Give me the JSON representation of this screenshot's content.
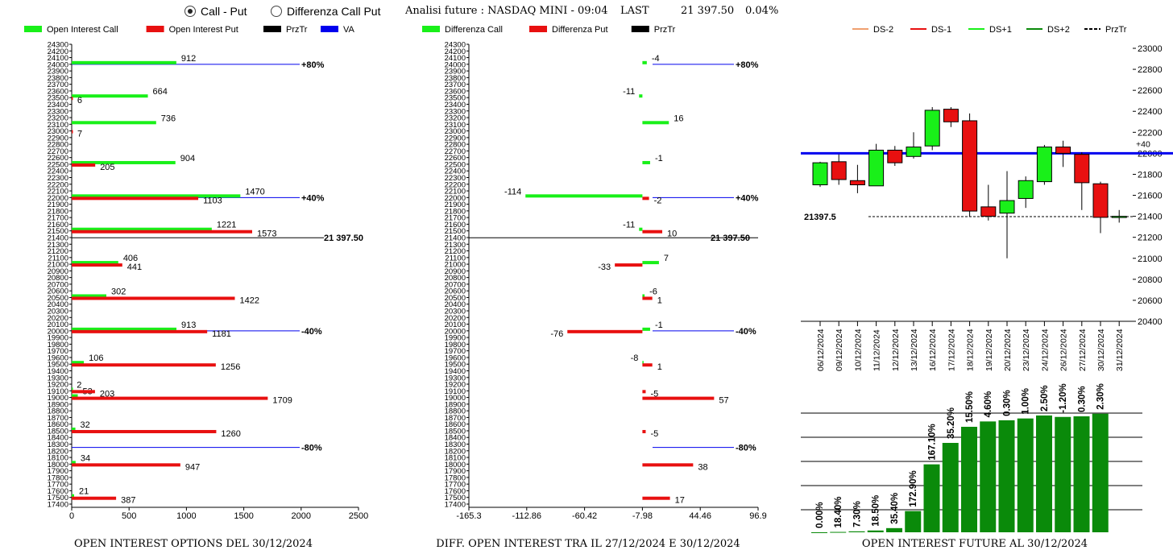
{
  "header": {
    "radio_call_put": "Call - Put",
    "radio_diff": "Differenza Call Put",
    "title": "Analisi future : NASDAQ MINI - 09:04",
    "last_label": "LAST",
    "last_value": "21 397.50",
    "change": "0.04%"
  },
  "colors": {
    "green": "#19f019",
    "red": "#e81010",
    "black": "#000000",
    "blue": "#0000ee",
    "darkgreen": "#0a8a0a"
  },
  "chart_data": [
    {
      "type": "bar",
      "orientation": "horizontal",
      "title": "OPEN INTEREST OPTIONS DEL 30/12/2024",
      "legend": [
        "Open Interest Call",
        "Open Interest Put",
        "PrzTr",
        "VA"
      ],
      "legend_placement": "top",
      "xlim": [
        0,
        2500
      ],
      "x_ticks": [
        "0",
        "500",
        "1000",
        "1500",
        "2000",
        "2500"
      ],
      "ylim": [
        17400,
        24300
      ],
      "y_tick_step": 100,
      "series": [
        {
          "name": "Open Interest Call",
          "color": "green",
          "points": [
            {
              "strike": 24000,
              "value": 912,
              "label": "912"
            },
            {
              "strike": 23500,
              "value": 664,
              "label": "664"
            },
            {
              "strike": 23100,
              "value": 736,
              "label": "736"
            },
            {
              "strike": 22500,
              "value": 904,
              "label": "904"
            },
            {
              "strike": 22000,
              "value": 1470,
              "label": "1470"
            },
            {
              "strike": 21500,
              "value": 1221,
              "label": "1221"
            },
            {
              "strike": 21000,
              "value": 406,
              "label": "406"
            },
            {
              "strike": 20500,
              "value": 302,
              "label": "302"
            },
            {
              "strike": 20000,
              "value": 913,
              "label": "913"
            },
            {
              "strike": 19500,
              "value": 106,
              "label": "106"
            },
            {
              "strike": 19100,
              "value": 2,
              "label": "2"
            },
            {
              "strike": 19000,
              "value": 53,
              "label": "53"
            },
            {
              "strike": 18500,
              "value": 32,
              "label": "32"
            },
            {
              "strike": 18000,
              "value": 34,
              "label": "34"
            },
            {
              "strike": 17500,
              "value": 21,
              "label": "21"
            }
          ]
        },
        {
          "name": "Open Interest Put",
          "color": "red",
          "points": [
            {
              "strike": 23500,
              "value": 6,
              "label": "6"
            },
            {
              "strike": 23000,
              "value": 7,
              "label": "7"
            },
            {
              "strike": 22500,
              "value": 205,
              "label": "205"
            },
            {
              "strike": 22000,
              "value": 1103,
              "label": "1103"
            },
            {
              "strike": 21500,
              "value": 1573,
              "label": "1573"
            },
            {
              "strike": 21000,
              "value": 441,
              "label": "441"
            },
            {
              "strike": 20500,
              "value": 1422,
              "label": "1422"
            },
            {
              "strike": 20000,
              "value": 1181,
              "label": "1181"
            },
            {
              "strike": 19500,
              "value": 1256,
              "label": "1256"
            },
            {
              "strike": 19100,
              "value": 203,
              "label": "203"
            },
            {
              "strike": 19000,
              "value": 1709,
              "label": "1709"
            },
            {
              "strike": 18500,
              "value": 1260,
              "label": "1260"
            },
            {
              "strike": 18000,
              "value": 947,
              "label": "947"
            },
            {
              "strike": 17500,
              "value": 387,
              "label": "387"
            }
          ]
        }
      ],
      "price_line": {
        "value": 21397.5,
        "label": "21 397.50"
      },
      "va_lines": [
        {
          "value": 24000,
          "label": "+80%"
        },
        {
          "value": 22000,
          "label": "+40%"
        },
        {
          "value": 20000,
          "label": "-40%"
        },
        {
          "value": 18250,
          "label": "-80%"
        }
      ]
    },
    {
      "type": "bar",
      "orientation": "horizontal",
      "title": "DIFF. OPEN INTEREST TRA IL 27/12/2024 E 30/12/2024",
      "legend": [
        "Differenza Call",
        "Differenza Put",
        "PrzTr"
      ],
      "legend_placement": "top",
      "xlim": [
        -165.3,
        96.9
      ],
      "x_ticks": [
        "-165.3",
        "-112.86",
        "-60.42",
        "-7.98",
        "44.46",
        "96.9"
      ],
      "zero": -7.98,
      "ylim": [
        17400,
        24300
      ],
      "y_tick_step": 100,
      "series": [
        {
          "name": "Differenza Call",
          "color": "green",
          "points": [
            {
              "strike": 24000,
              "value": -4,
              "label": "-4"
            },
            {
              "strike": 23500,
              "value": -11,
              "label": "-11"
            },
            {
              "strike": 23100,
              "value": 16,
              "label": "16"
            },
            {
              "strike": 22500,
              "value": -1,
              "label": "-1"
            },
            {
              "strike": 22000,
              "value": -114,
              "label": "-114"
            },
            {
              "strike": 21500,
              "value": -11,
              "label": "-11"
            },
            {
              "strike": 21000,
              "value": 7,
              "label": "7"
            },
            {
              "strike": 20500,
              "value": -6,
              "label": "-6"
            },
            {
              "strike": 20000,
              "value": -1,
              "label": "-1"
            },
            {
              "strike": 19500,
              "value": -8,
              "label": "-8"
            }
          ]
        },
        {
          "name": "Differenza Put",
          "color": "red",
          "points": [
            {
              "strike": 22000,
              "value": -2,
              "label": "-2"
            },
            {
              "strike": 21500,
              "value": 10,
              "label": "10"
            },
            {
              "strike": 21000,
              "value": -33,
              "label": "-33"
            },
            {
              "strike": 20500,
              "value": 1,
              "label": "1"
            },
            {
              "strike": 20000,
              "value": -76,
              "label": "-76"
            },
            {
              "strike": 19500,
              "value": 1,
              "label": "1"
            },
            {
              "strike": 19100,
              "value": -5,
              "label": "-5"
            },
            {
              "strike": 19000,
              "value": 57,
              "label": "57"
            },
            {
              "strike": 18500,
              "value": -5,
              "label": "-5"
            },
            {
              "strike": 18000,
              "value": 38,
              "label": "38"
            },
            {
              "strike": 17500,
              "value": 17,
              "label": "17"
            }
          ]
        }
      ],
      "price_line": {
        "value": 21397.5,
        "label": "21 397.50"
      },
      "va_lines": [
        {
          "value": 24000,
          "label": "+80%"
        },
        {
          "value": 22000,
          "label": "+40%"
        },
        {
          "value": 20000,
          "label": "-40%"
        },
        {
          "value": 18250,
          "label": "-80%"
        }
      ]
    },
    {
      "type": "candlestick",
      "legend": [
        "DS-2",
        "DS-1",
        "DS+1",
        "DS+2",
        "PrzTr"
      ],
      "legend_colors": [
        "#f0a070",
        "#e81010",
        "#19f019",
        "#0a8a0a",
        "#000000"
      ],
      "legend_placement": "top",
      "ylim": [
        20400,
        23000
      ],
      "y_ticks": [
        20400,
        20600,
        20800,
        21000,
        21200,
        21400,
        21600,
        21800,
        22000,
        22200,
        22400,
        22600,
        22800,
        23000
      ],
      "dates": [
        "06/12/2024",
        "09/12/2024",
        "10/12/2024",
        "11/12/2024",
        "12/12/2024",
        "13/12/2024",
        "16/12/2024",
        "17/12/2024",
        "18/12/2024",
        "19/12/2024",
        "20/12/2024",
        "23/12/2024",
        "24/12/2024",
        "26/12/2024",
        "27/12/2024",
        "30/12/2024",
        "31/12/2024"
      ],
      "candles": [
        {
          "o": 21700,
          "h": 21920,
          "l": 21680,
          "c": 21910
        },
        {
          "o": 21920,
          "h": 21990,
          "l": 21700,
          "c": 21750
        },
        {
          "o": 21740,
          "h": 21890,
          "l": 21620,
          "c": 21700
        },
        {
          "o": 21690,
          "h": 22090,
          "l": 21690,
          "c": 22030
        },
        {
          "o": 22030,
          "h": 22070,
          "l": 21880,
          "c": 21910
        },
        {
          "o": 21970,
          "h": 22200,
          "l": 21950,
          "c": 22060
        },
        {
          "o": 22070,
          "h": 22440,
          "l": 22030,
          "c": 22410
        },
        {
          "o": 22420,
          "h": 22440,
          "l": 22250,
          "c": 22300
        },
        {
          "o": 22310,
          "h": 22380,
          "l": 21400,
          "c": 21450
        },
        {
          "o": 21490,
          "h": 21700,
          "l": 21360,
          "c": 21400
        },
        {
          "o": 21430,
          "h": 21830,
          "l": 21000,
          "c": 21550
        },
        {
          "o": 21570,
          "h": 21780,
          "l": 21480,
          "c": 21740
        },
        {
          "o": 21730,
          "h": 22080,
          "l": 21700,
          "c": 22060
        },
        {
          "o": 22060,
          "h": 22120,
          "l": 21870,
          "c": 22000
        },
        {
          "o": 21990,
          "h": 22010,
          "l": 21460,
          "c": 21720
        },
        {
          "o": 21710,
          "h": 21730,
          "l": 21240,
          "c": 21390
        },
        {
          "o": 21400,
          "h": 21460,
          "l": 21340,
          "c": 21400
        }
      ],
      "blue_line": {
        "value": 22000,
        "label": "+40"
      },
      "price_line": {
        "value": 21397.5,
        "label": "21397.5"
      }
    },
    {
      "type": "bar",
      "title": "OPEN INTEREST FUTURE AL 30/12/2024",
      "labels": [
        "0.00%",
        "18.40%",
        "7.30%",
        "18.50%",
        "35.40%",
        "172.90%",
        "167.10%",
        "35.20%",
        "15.50%",
        "4.60%",
        "0.30%",
        "1.00%",
        "2.50%",
        "-1.20%",
        "0.30%",
        "2.30%"
      ],
      "values": [
        0,
        0.3,
        0.8,
        1.5,
        3.5,
        17.8,
        57,
        75,
        88.5,
        93,
        94,
        95.5,
        98,
        96.8,
        97.3,
        99.5
      ]
    }
  ]
}
